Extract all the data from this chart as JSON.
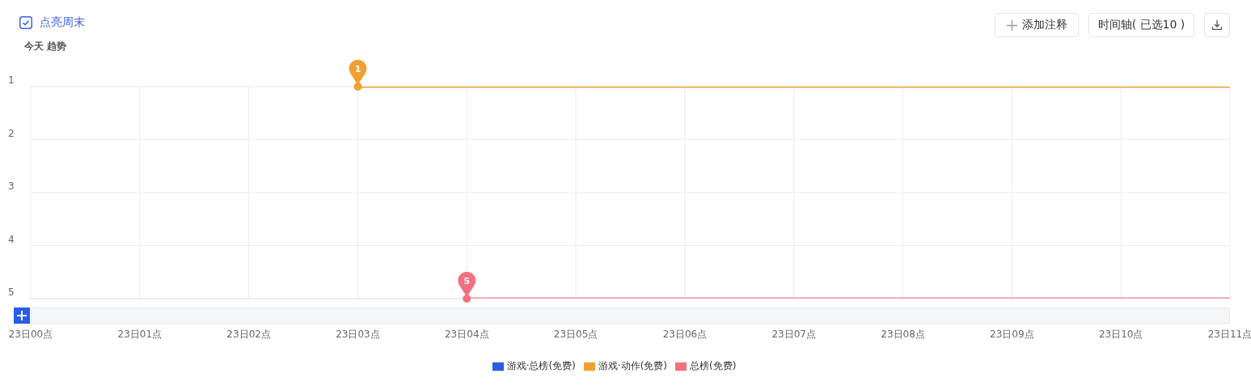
{
  "chart_data": {
    "type": "line",
    "title": "今天 趋势",
    "categories": [
      "23日00点",
      "23日01点",
      "23日02点",
      "23日03点",
      "23日04点",
      "23日05点",
      "23日06点",
      "23日07点",
      "23日08点",
      "23日09点",
      "23日10点",
      "23日11点"
    ],
    "ylim": [
      5,
      1
    ],
    "yticks": [
      1,
      2,
      3,
      4,
      5
    ],
    "series": [
      {
        "name": "游戏·总榜(免费)",
        "color": "#2a5ce6",
        "values": [
          null,
          null,
          null,
          null,
          null,
          null,
          null,
          null,
          null,
          null,
          null,
          null
        ]
      },
      {
        "name": "游戏·动作(免费)",
        "color": "#f0a030",
        "values": [
          null,
          null,
          null,
          1,
          1,
          1,
          1,
          1,
          1,
          1,
          1,
          1
        ]
      },
      {
        "name": "总榜(免费)",
        "color": "#f2707f",
        "values": [
          null,
          null,
          null,
          null,
          5,
          5,
          5,
          5,
          5,
          5,
          5,
          5
        ]
      }
    ],
    "annotations": [
      "点亮周末",
      "添加注释",
      "时间轴( 已选10 )",
      {
        "text": "1",
        "x": "23日03点",
        "y": 1
      },
      {
        "text": "5",
        "x": "23日04点",
        "y": 5
      }
    ],
    "grid": true,
    "legend": "bottom",
    "marker": "none",
    "line_style": "solid"
  }
}
